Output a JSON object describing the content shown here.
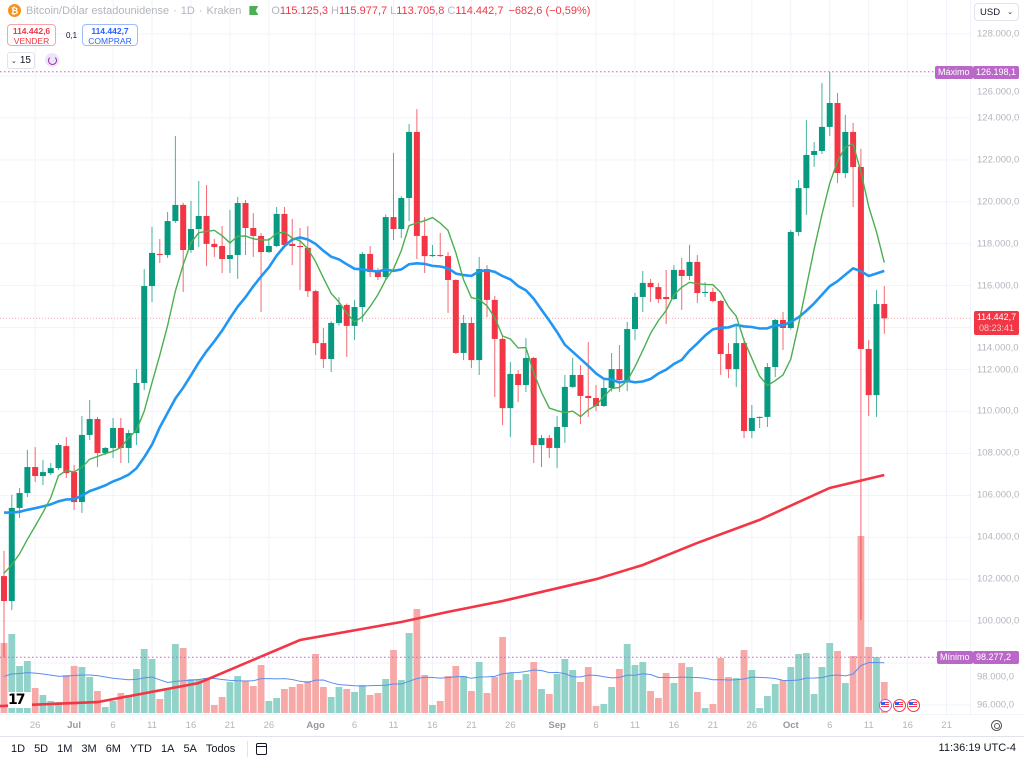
{
  "header": {
    "symbol_title": "Bitcoin/Dólar estadounidense",
    "interval": "1D",
    "exchange": "Kraken",
    "o_label": "O",
    "o": "115.125,3",
    "h_label": "H",
    "h": "115.977,7",
    "l_label": "L",
    "l": "113.705,8",
    "c_label": "C",
    "c": "114.442,7",
    "change": "−682,6 (−0,59%)"
  },
  "trade": {
    "sell_price": "114.442,6",
    "sell_label": "VENDER",
    "spread": "0,1",
    "buy_price": "114.442,7",
    "buy_label": "COMPRAR"
  },
  "indicators_toggle": {
    "count": "15"
  },
  "currency": {
    "value": "USD"
  },
  "price_labels": {
    "max_label": "Máximo",
    "max_value": "126.198,1",
    "min_label": "Mínimo",
    "min_value": "98.277,2",
    "current_price": "114.442,7",
    "countdown": "08:23:41"
  },
  "bottom_bar": {
    "ranges": [
      "1D",
      "5D",
      "1M",
      "3M",
      "6M",
      "YTD",
      "1A",
      "5A",
      "Todos"
    ],
    "time": "11:36:19 UTC-4"
  },
  "colors": {
    "up": "#089981",
    "down": "#f23645",
    "vol_up": "#92d3c9",
    "vol_down": "#f7a9a8",
    "ma_fast": "#4caf50",
    "ma_mid": "#2196f3",
    "ma_slow": "#f23645",
    "vol_ma": "#5b8def",
    "extreme": "#ba68c8"
  },
  "chart_data": {
    "type": "candlestick",
    "title": "Bitcoin/Dólar estadounidense · 1D · Kraken",
    "ylim": [
      95200,
      128800
    ],
    "max_price": 126198.1,
    "min_price": 98277.2,
    "last_price": 114442.7,
    "y_ticks": [
      {
        "value": 128000,
        "label": "128.000,0"
      },
      {
        "value": 126000,
        "label": "126.000,0"
      },
      {
        "value": 124000,
        "label": "124.000,0"
      },
      {
        "value": 122000,
        "label": "122.000,0"
      },
      {
        "value": 120000,
        "label": "120.000,0"
      },
      {
        "value": 118000,
        "label": "118.000,0"
      },
      {
        "value": 116000,
        "label": "116.000,0"
      },
      {
        "value": 114000,
        "label": "114.000,0"
      },
      {
        "value": 112000,
        "label": "112.000,0"
      },
      {
        "value": 110000,
        "label": "110.000,0"
      },
      {
        "value": 108000,
        "label": "108.000,0"
      },
      {
        "value": 106000,
        "label": "106.000,0"
      },
      {
        "value": 104000,
        "label": "104.000,0"
      },
      {
        "value": 102000,
        "label": "102.000,0"
      },
      {
        "value": 100000,
        "label": "100.000,0"
      },
      {
        "value": 98000,
        "label": "98.000,0"
      },
      {
        "value": 96000,
        "label": "96.000,0"
      }
    ],
    "x_ticks": [
      {
        "bar": 4,
        "label": "26"
      },
      {
        "bar": 9,
        "label": "Jul",
        "month": true
      },
      {
        "bar": 14,
        "label": "6"
      },
      {
        "bar": 19,
        "label": "11"
      },
      {
        "bar": 24,
        "label": "16"
      },
      {
        "bar": 29,
        "label": "21"
      },
      {
        "bar": 34,
        "label": "26"
      },
      {
        "bar": 40,
        "label": "Ago",
        "month": true
      },
      {
        "bar": 45,
        "label": "6"
      },
      {
        "bar": 50,
        "label": "11"
      },
      {
        "bar": 55,
        "label": "16"
      },
      {
        "bar": 60,
        "label": "21"
      },
      {
        "bar": 65,
        "label": "26"
      },
      {
        "bar": 71,
        "label": "Sep",
        "month": true
      },
      {
        "bar": 76,
        "label": "6"
      },
      {
        "bar": 81,
        "label": "11"
      },
      {
        "bar": 86,
        "label": "16"
      },
      {
        "bar": 91,
        "label": "21"
      },
      {
        "bar": 96,
        "label": "26"
      },
      {
        "bar": 101,
        "label": "Oct",
        "month": true
      },
      {
        "bar": 106,
        "label": "6"
      },
      {
        "bar": 111,
        "label": "11"
      },
      {
        "bar": 116,
        "label": "16"
      },
      {
        "bar": 121,
        "label": "21"
      }
    ],
    "ohlc_fields": [
      "open",
      "high",
      "low",
      "close"
    ],
    "ohlc": [
      [
        102150,
        103350,
        98277.2,
        100960
      ],
      [
        100960,
        106020,
        100530,
        105400
      ],
      [
        105400,
        106350,
        104920,
        106110
      ],
      [
        106110,
        108160,
        105920,
        107350
      ],
      [
        107350,
        108300,
        106640,
        106920
      ],
      [
        106920,
        107680,
        106490,
        107110
      ],
      [
        107060,
        107540,
        106970,
        107300
      ],
      [
        107300,
        108500,
        107210,
        108400
      ],
      [
        108350,
        108780,
        106830,
        107060
      ],
      [
        107110,
        107450,
        105300,
        105680
      ],
      [
        105680,
        109780,
        105160,
        108880
      ],
      [
        108880,
        110550,
        108640,
        109640
      ],
      [
        109640,
        109740,
        107350,
        108020
      ],
      [
        108020,
        108300,
        107920,
        108260
      ],
      [
        108260,
        109690,
        107780,
        109210
      ],
      [
        109210,
        109690,
        107540,
        108260
      ],
      [
        108260,
        109120,
        107540,
        108970
      ],
      [
        108970,
        112020,
        108400,
        111360
      ],
      [
        111360,
        116790,
        111020,
        115980
      ],
      [
        115980,
        118800,
        115220,
        117560
      ],
      [
        117510,
        118220,
        117080,
        117460
      ],
      [
        117460,
        119510,
        117320,
        119080
      ],
      [
        119080,
        123140,
        118990,
        119850
      ],
      [
        119850,
        119950,
        115700,
        117700
      ],
      [
        117700,
        120040,
        117560,
        118700
      ],
      [
        118700,
        120990,
        117840,
        119320
      ],
      [
        119320,
        120800,
        116940,
        117990
      ],
      [
        117990,
        118220,
        117370,
        117840
      ],
      [
        117890,
        118840,
        116600,
        117270
      ],
      [
        117270,
        119610,
        116600,
        117460
      ],
      [
        117460,
        120230,
        116320,
        119940
      ],
      [
        119940,
        120080,
        117460,
        118750
      ],
      [
        118750,
        119460,
        117370,
        118370
      ],
      [
        118370,
        118510,
        114740,
        117600
      ],
      [
        117600,
        118270,
        117560,
        117890
      ],
      [
        117890,
        119750,
        117840,
        119420
      ],
      [
        119420,
        119750,
        117840,
        117940
      ],
      [
        117990,
        119180,
        116980,
        117890
      ],
      [
        117890,
        118750,
        115790,
        117840
      ],
      [
        117800,
        118840,
        115460,
        115740
      ],
      [
        115740,
        115800,
        112690,
        113260
      ],
      [
        113260,
        113980,
        112070,
        112500
      ],
      [
        112500,
        114300,
        111880,
        114220
      ],
      [
        114220,
        115460,
        114100,
        115080
      ],
      [
        115080,
        115150,
        112600,
        114080
      ],
      [
        114080,
        115320,
        113410,
        114980
      ],
      [
        114980,
        117600,
        114270,
        117510
      ],
      [
        117510,
        117890,
        116410,
        116650
      ],
      [
        116650,
        116840,
        116270,
        116410
      ],
      [
        116410,
        119400,
        116300,
        119270
      ],
      [
        119270,
        122330,
        118180,
        118700
      ],
      [
        118700,
        120270,
        118270,
        120180
      ],
      [
        120180,
        123710,
        119080,
        123330
      ],
      [
        123330,
        124420,
        117270,
        118370
      ],
      [
        118370,
        119270,
        116600,
        117410
      ],
      [
        117410,
        117940,
        117370,
        117460
      ],
      [
        117460,
        118510,
        117370,
        117410
      ],
      [
        117410,
        117600,
        114700,
        116270
      ],
      [
        116270,
        116300,
        112740,
        112790
      ],
      [
        112790,
        114600,
        112450,
        114220
      ],
      [
        114220,
        114500,
        112070,
        112450
      ],
      [
        112450,
        117370,
        111740,
        116790
      ],
      [
        116790,
        116980,
        114500,
        115320
      ],
      [
        115320,
        115510,
        110690,
        113460
      ],
      [
        113460,
        113600,
        109350,
        110160
      ],
      [
        110160,
        112360,
        108780,
        111790
      ],
      [
        111790,
        111980,
        110450,
        111260
      ],
      [
        111260,
        113500,
        110930,
        112550
      ],
      [
        112550,
        112600,
        107540,
        108400
      ],
      [
        108400,
        108880,
        107350,
        108730
      ],
      [
        108730,
        108880,
        107780,
        108260
      ],
      [
        108260,
        109780,
        107300,
        109260
      ],
      [
        109260,
        111740,
        108500,
        111170
      ],
      [
        111170,
        112550,
        111120,
        111740
      ],
      [
        111740,
        112210,
        109400,
        110740
      ],
      [
        110740,
        113310,
        109740,
        110640
      ],
      [
        110640,
        111260,
        110020,
        110260
      ],
      [
        110260,
        111550,
        110210,
        111120
      ],
      [
        111120,
        112790,
        110950,
        112020
      ],
      [
        112020,
        113170,
        110930,
        111500
      ],
      [
        111500,
        114270,
        110970,
        113930
      ],
      [
        113930,
        115650,
        113410,
        115460
      ],
      [
        115460,
        116700,
        114740,
        116130
      ],
      [
        116130,
        116320,
        115220,
        115930
      ],
      [
        115930,
        116130,
        115170,
        115360
      ],
      [
        115460,
        116750,
        114170,
        115360
      ],
      [
        115360,
        116980,
        115320,
        116750
      ],
      [
        116750,
        117320,
        114840,
        116460
      ],
      [
        116460,
        117940,
        116270,
        117130
      ],
      [
        117130,
        117460,
        115170,
        115650
      ],
      [
        115650,
        116170,
        115460,
        115700
      ],
      [
        115700,
        115890,
        115200,
        115270
      ],
      [
        115270,
        115320,
        111740,
        112740
      ],
      [
        112740,
        113260,
        111590,
        112020
      ],
      [
        112020,
        114120,
        111170,
        113260
      ],
      [
        113260,
        113500,
        108730,
        109070
      ],
      [
        109070,
        110310,
        108730,
        109690
      ],
      [
        109690,
        109760,
        109210,
        109740
      ],
      [
        109740,
        112310,
        109260,
        112120
      ],
      [
        112120,
        114410,
        111640,
        114360
      ],
      [
        114360,
        114740,
        112930,
        113980
      ],
      [
        113980,
        118650,
        113900,
        118560
      ],
      [
        118560,
        121040,
        118370,
        120650
      ],
      [
        120650,
        123900,
        119370,
        122230
      ],
      [
        122230,
        122850,
        121660,
        122420
      ],
      [
        122420,
        125660,
        122280,
        123570
      ],
      [
        123570,
        126198.1,
        123140,
        124710
      ],
      [
        124710,
        125190,
        120890,
        121370
      ],
      [
        121370,
        124140,
        121130,
        123330
      ],
      [
        123330,
        123760,
        119750,
        121660
      ],
      [
        121660,
        122520,
        100050,
        112980
      ],
      [
        112980,
        113410,
        109780,
        110780
      ],
      [
        110780,
        115790,
        109740,
        115120
      ],
      [
        115125.3,
        115977.7,
        113705.8,
        114442.7
      ]
    ],
    "volume_units": "relative",
    "volume": [
      70,
      79,
      47,
      52,
      25,
      18,
      12,
      11,
      38,
      47,
      46,
      36,
      22,
      6,
      12,
      20,
      18,
      44,
      64,
      54,
      14,
      25,
      69,
      65,
      34,
      34,
      35,
      8,
      16,
      31,
      37,
      32,
      27,
      48,
      12,
      15,
      24,
      26,
      29,
      32,
      59,
      26,
      16,
      26,
      24,
      21,
      28,
      18,
      20,
      34,
      63,
      33,
      80,
      104,
      38,
      8,
      12,
      37,
      47,
      37,
      22,
      51,
      20,
      36,
      76,
      40,
      33,
      39,
      51,
      24,
      19,
      39,
      54,
      43,
      31,
      46,
      7,
      9,
      26,
      44,
      69,
      48,
      51,
      22,
      15,
      40,
      30,
      50,
      46,
      21,
      5,
      9,
      55,
      36,
      35,
      63,
      43,
      5,
      17,
      29,
      33,
      46,
      59,
      60,
      19,
      46,
      70,
      62,
      30,
      57,
      177,
      66,
      56,
      31
    ],
    "ma_fast": {
      "type": "SMA",
      "length": 7,
      "seed": 102500
    },
    "ma_mid": {
      "type": "SMA",
      "length": 20,
      "seed": 105400
    },
    "volume_ma": {
      "type": "SMA",
      "length": 20,
      "seed": 35
    },
    "ma_slow_points": [
      [
        0,
        95950
      ],
      [
        12,
        96140
      ],
      [
        25,
        97050
      ],
      [
        38,
        99100
      ],
      [
        51,
        99960
      ],
      [
        57,
        100440
      ],
      [
        64,
        100960
      ],
      [
        76,
        102000
      ],
      [
        82,
        102680
      ],
      [
        89,
        103730
      ],
      [
        97,
        104830
      ],
      [
        102,
        105680
      ],
      [
        106,
        106350
      ],
      [
        113,
        106970
      ]
    ]
  }
}
